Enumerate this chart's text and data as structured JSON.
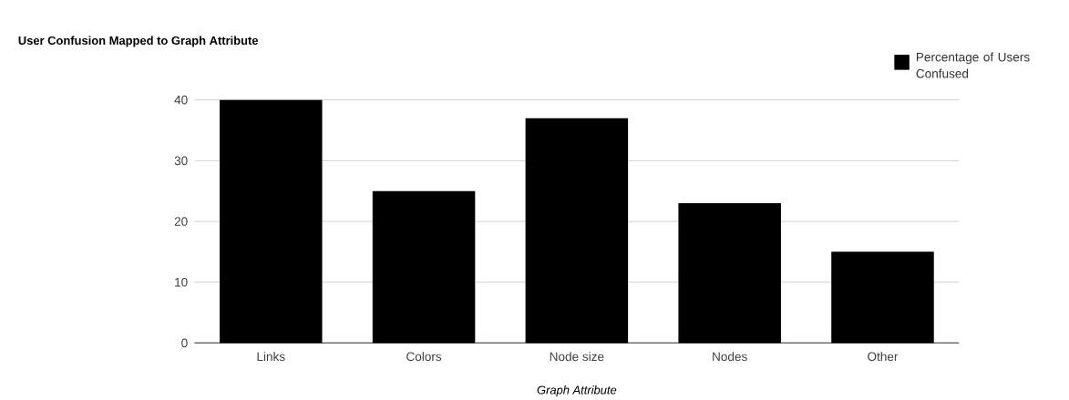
{
  "chart_data": {
    "type": "bar",
    "title": "User Confusion Mapped to Graph Attribute",
    "xlabel": "Graph Attribute",
    "categories": [
      "Links",
      "Colors",
      "Node size",
      "Nodes",
      "Other"
    ],
    "series": [
      {
        "name": "Percentage of Users Confused",
        "color": "#000000",
        "values": [
          40,
          25,
          37,
          23,
          15
        ]
      }
    ],
    "ylim": [
      0,
      40
    ],
    "yticks": [
      0,
      10,
      20,
      30,
      40
    ],
    "grid": "y",
    "legend": "top right"
  }
}
